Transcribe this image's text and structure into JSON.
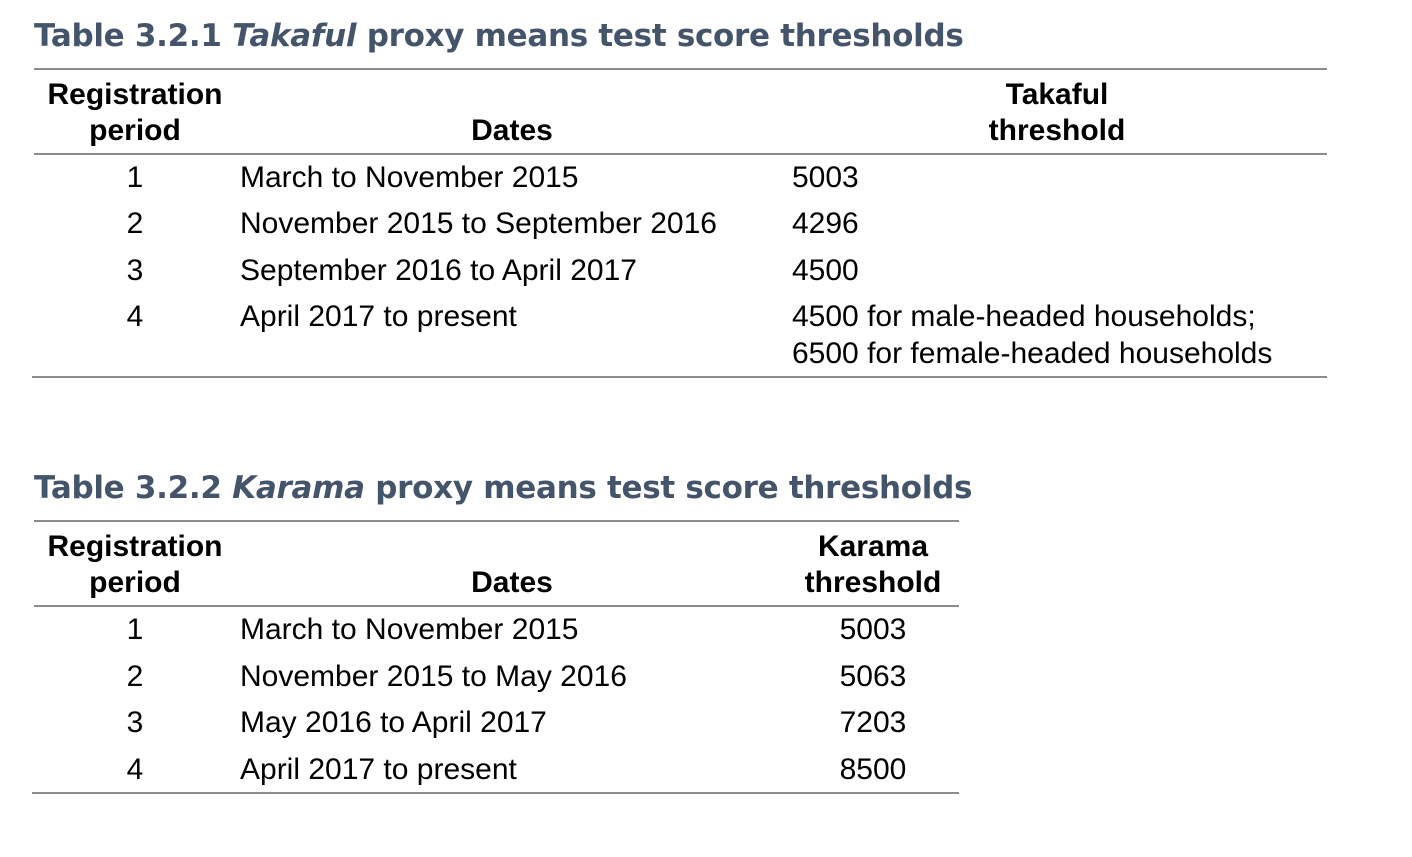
{
  "tables": [
    {
      "label": "Table 3.2.1",
      "italic_name": "Takaful",
      "title_rest": "proxy means test score thresholds",
      "headers": {
        "period_line1": "Registration",
        "period_line2": "period",
        "dates": "Dates",
        "threshold_line1": "Takaful",
        "threshold_line2": "threshold"
      },
      "rows": [
        {
          "period": "1",
          "dates": "March to November 2015",
          "threshold": "5003",
          "threshold_line2": ""
        },
        {
          "period": "2",
          "dates": "November 2015 to September 2016",
          "threshold": "4296",
          "threshold_line2": ""
        },
        {
          "period": "3",
          "dates": "September 2016 to April 2017",
          "threshold": "4500",
          "threshold_line2": ""
        },
        {
          "period": "4",
          "dates": "April 2017 to present",
          "threshold": "4500 for male-headed households;",
          "threshold_line2": "6500 for female-headed households"
        }
      ]
    },
    {
      "label": "Table 3.2.2",
      "italic_name": "Karama",
      "title_rest": "proxy means test score thresholds",
      "headers": {
        "period_line1": "Registration",
        "period_line2": "period",
        "dates": "Dates",
        "threshold_line1": "Karama",
        "threshold_line2": "threshold"
      },
      "rows": [
        {
          "period": "1",
          "dates": "March to November 2015",
          "threshold": "5003"
        },
        {
          "period": "2",
          "dates": "November 2015 to May 2016",
          "threshold": "5063"
        },
        {
          "period": "3",
          "dates": "May 2016 to April 2017",
          "threshold": "7203"
        },
        {
          "period": "4",
          "dates": "April 2017 to present",
          "threshold": "8500"
        }
      ]
    }
  ],
  "colors": {
    "title": "#44546a",
    "rule": "#8c8c8c"
  }
}
